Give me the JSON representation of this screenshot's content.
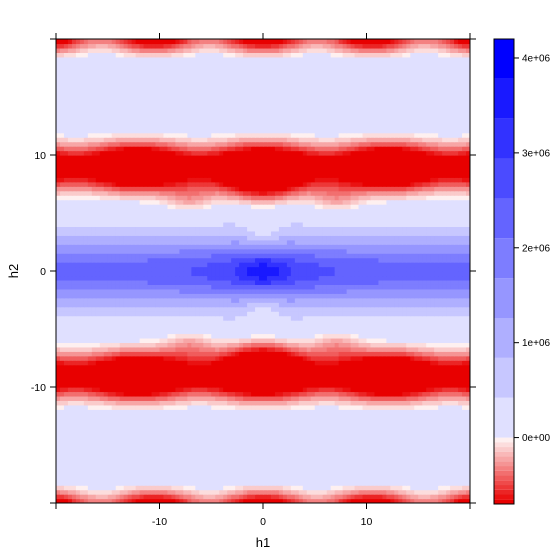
{
  "chart_data": {
    "type": "heatmap",
    "subtype": "filled-contour (levelplot)",
    "xlabel": "h1",
    "ylabel": "h2",
    "xlim": [
      -20,
      20
    ],
    "ylim": [
      -20,
      20
    ],
    "x_ticks": [
      -10,
      0,
      10
    ],
    "y_ticks": [
      -10,
      0,
      10
    ],
    "x_tick_labels": [
      "-10",
      "0",
      "10"
    ],
    "y_tick_labels": [
      "-10",
      "0",
      "10"
    ],
    "colorbar": {
      "min": -700000,
      "max": 4200000,
      "ticks": [
        0,
        1000000,
        2000000,
        3000000,
        4000000
      ],
      "tick_labels": [
        "0e+00",
        "1e+06",
        "2e+06",
        "3e+06",
        "4e+06"
      ],
      "negative_levels": 14,
      "positive_levels": 10,
      "colors": {
        "negative": "#e80000",
        "zero": "#ffffff",
        "positive": "#0000ff"
      }
    },
    "grid": false,
    "legend": "right (colorbar)",
    "description": "Symmetric surface in h1,h2: strong positive (blue) band along h2 = 0 peaking near the origin, negative (red) bands near h2 = +/-9, weakly positive bands near h2 = +/-15, negative again near h2 = +/-20."
  }
}
